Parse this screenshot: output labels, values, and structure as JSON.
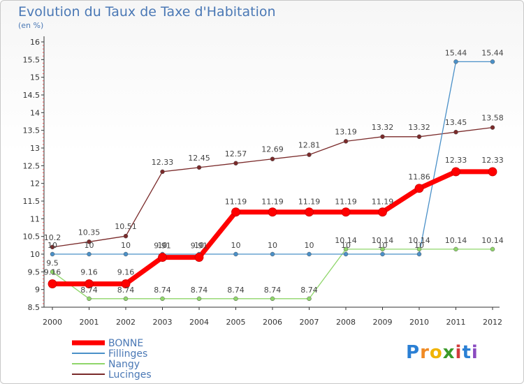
{
  "header": {
    "title": "Evolution du Taux de Taxe d'Habitation",
    "subtitle": "(en %)"
  },
  "logo": {
    "text": "Proxiti",
    "letters": [
      "P",
      "r",
      "o",
      "x",
      "i",
      "t",
      "i"
    ],
    "colors": [
      "#2a7fd4",
      "#f08a24",
      "#f0b400",
      "#3a9a2a",
      "#d23b3b",
      "#2a7fd4",
      "#8a4bc0"
    ]
  },
  "chart_data": {
    "type": "line",
    "title": "Evolution du Taux de Taxe d'Habitation",
    "ylabel": "(en %)",
    "x": [
      "2000",
      "2001",
      "2002",
      "2003",
      "2004",
      "2005",
      "2006",
      "2007",
      "2008",
      "2009",
      "2010",
      "2011",
      "2012"
    ],
    "ylim": [
      8.5,
      16
    ],
    "yticks": [
      "8.5",
      "9",
      "9.5",
      "10",
      "10.5",
      "11",
      "11.5",
      "12",
      "12.5",
      "13",
      "13.5",
      "14",
      "14.5",
      "15",
      "15.5",
      "16"
    ],
    "grid": false,
    "legend_position": "bottom-left",
    "series": [
      {
        "name": "BONNE",
        "color": "#ff0000",
        "values": [
          9.16,
          9.16,
          9.16,
          9.91,
          9.91,
          11.19,
          11.19,
          11.19,
          11.19,
          11.19,
          11.86,
          12.33,
          12.33
        ],
        "labels": [
          "9.16",
          "9.16",
          "9.16",
          "9.91",
          "9.91",
          "11.19",
          "11.19",
          "11.19",
          "11.19",
          "11.19",
          "11.86",
          "12.33",
          "12.33"
        ]
      },
      {
        "name": "Fillinges",
        "color": "#4a90c8",
        "values": [
          10,
          10,
          10,
          10,
          10,
          10,
          10,
          10,
          10,
          10,
          10,
          15.44,
          15.44
        ],
        "labels": [
          "10",
          "10",
          "10",
          "10",
          "10",
          "10",
          "10",
          "10",
          "10",
          "10",
          "10",
          "15.44",
          "15.44"
        ]
      },
      {
        "name": "Nangy",
        "color": "#8fd66a",
        "values": [
          9.5,
          8.74,
          8.74,
          8.74,
          8.74,
          8.74,
          8.74,
          8.74,
          10.14,
          10.14,
          10.14,
          10.14,
          10.14
        ],
        "labels": [
          "9.5",
          "8.74",
          "8.74",
          "8.74",
          "8.74",
          "8.74",
          "8.74",
          "8.74",
          "10.14",
          "10.14",
          "10.14",
          "10.14",
          "10.14"
        ]
      },
      {
        "name": "Lucinges",
        "color": "#7a2a2a",
        "values": [
          10.2,
          10.35,
          10.51,
          12.33,
          12.45,
          12.57,
          12.69,
          12.81,
          13.19,
          13.32,
          13.32,
          13.45,
          13.58
        ],
        "labels": [
          "10.2",
          "10.35",
          "10.51",
          "12.33",
          "12.45",
          "12.57",
          "12.69",
          "12.81",
          "13.19",
          "13.32",
          "13.32",
          "13.45",
          "13.58"
        ]
      }
    ]
  }
}
